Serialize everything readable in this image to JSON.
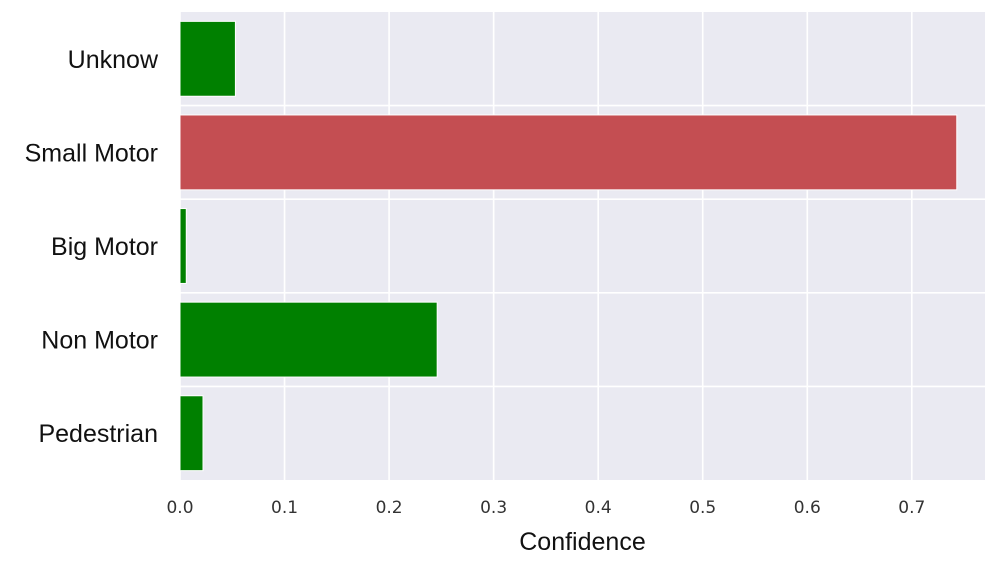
{
  "chart_data": {
    "type": "bar",
    "orientation": "horizontal",
    "categories": [
      "Unknow",
      "Small Motor",
      "Big Motor",
      "Non Motor",
      "Pedestrian"
    ],
    "values": [
      0.053,
      0.743,
      0.006,
      0.246,
      0.022
    ],
    "colors": [
      "#008000",
      "#c44e52",
      "#008000",
      "#008000",
      "#008000"
    ],
    "xlabel": "Confidence",
    "ylabel": "",
    "xlim": [
      0,
      0.77
    ],
    "x_ticks": [
      0.0,
      0.1,
      0.2,
      0.3,
      0.4,
      0.5,
      0.6,
      0.7
    ],
    "x_tick_labels": [
      "0.0",
      "0.1",
      "0.2",
      "0.3",
      "0.4",
      "0.5",
      "0.6",
      "0.7"
    ],
    "grid": true,
    "background": "#eaeaf2",
    "grid_color": "#ffffff"
  }
}
